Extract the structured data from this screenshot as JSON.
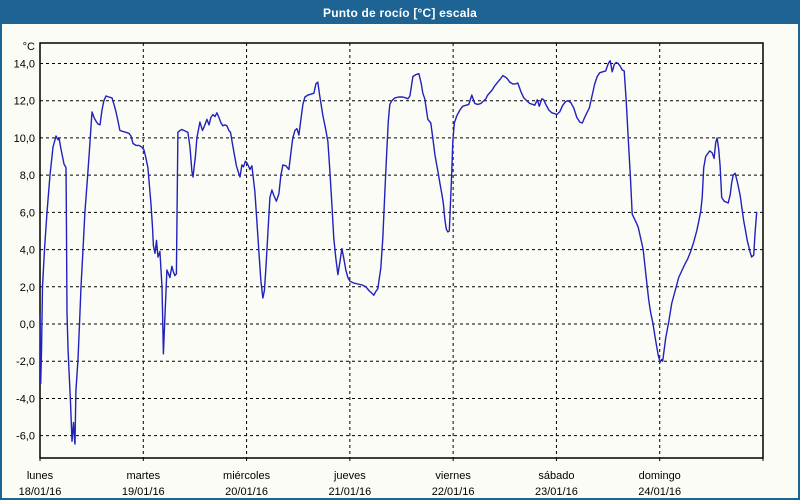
{
  "window": {
    "title": "Punto de rocío [°C] escala",
    "title_bar_color": "#1d6394",
    "background_color": "#fcfcf6",
    "border_color": "#1d6394"
  },
  "chart_data": {
    "type": "line",
    "title": "Punto de rocío [°C] escala",
    "y_unit_label": "°C",
    "xlabel": "",
    "ylabel": "Punto de rocío [°C]",
    "legend": "none",
    "grid": "dashed-black",
    "line_color": "#2121bd",
    "axis_color": "#000000",
    "xlim_days": [
      0,
      7
    ],
    "ylim": [
      -7.2,
      15.1
    ],
    "yticks": [
      {
        "value": 14,
        "label": "14,0"
      },
      {
        "value": 12,
        "label": "12,0"
      },
      {
        "value": 10,
        "label": "10,0"
      },
      {
        "value": 8,
        "label": "8,0"
      },
      {
        "value": 6,
        "label": "6,0"
      },
      {
        "value": 4,
        "label": "4,0"
      },
      {
        "value": 2,
        "label": "2,0"
      },
      {
        "value": 0,
        "label": "0,0"
      },
      {
        "value": -2,
        "label": "-2,0"
      },
      {
        "value": -4,
        "label": "-4,0"
      },
      {
        "value": -6,
        "label": "-6,0"
      }
    ],
    "x_days": [
      {
        "name": "lunes",
        "date": "18/01/16"
      },
      {
        "name": "martes",
        "date": "19/01/16"
      },
      {
        "name": "miércoles",
        "date": "20/01/16"
      },
      {
        "name": "jueves",
        "date": "21/01/16"
      },
      {
        "name": "viernes",
        "date": "22/01/16"
      },
      {
        "name": "sábado",
        "date": "23/01/16"
      },
      {
        "name": "domingo",
        "date": "24/01/16"
      }
    ],
    "points": [
      [
        0.0,
        0.5
      ],
      [
        0.007,
        -3.2
      ],
      [
        0.015,
        -1.5
      ],
      [
        0.024,
        2.0
      ],
      [
        0.044,
        4.0
      ],
      [
        0.068,
        6.0
      ],
      [
        0.097,
        8.0
      ],
      [
        0.126,
        9.5
      ],
      [
        0.155,
        10.1
      ],
      [
        0.174,
        9.9
      ],
      [
        0.184,
        10.0
      ],
      [
        0.203,
        9.4
      ],
      [
        0.218,
        9.0
      ],
      [
        0.232,
        8.6
      ],
      [
        0.252,
        8.4
      ],
      [
        0.255,
        6.5
      ],
      [
        0.258,
        4.0
      ],
      [
        0.261,
        0.6
      ],
      [
        0.271,
        -1.3
      ],
      [
        0.281,
        -2.5
      ],
      [
        0.295,
        -4.2
      ],
      [
        0.31,
        -6.3
      ],
      [
        0.324,
        -5.3
      ],
      [
        0.334,
        -6.2
      ],
      [
        0.339,
        -6.45
      ],
      [
        0.348,
        -3.6
      ],
      [
        0.368,
        -1.9
      ],
      [
        0.382,
        0.0
      ],
      [
        0.397,
        2.0
      ],
      [
        0.416,
        4.0
      ],
      [
        0.435,
        6.0
      ],
      [
        0.455,
        7.5
      ],
      [
        0.474,
        9.0
      ],
      [
        0.489,
        10.2
      ],
      [
        0.503,
        11.4
      ],
      [
        0.523,
        11.1
      ],
      [
        0.542,
        10.9
      ],
      [
        0.561,
        10.75
      ],
      [
        0.581,
        10.7
      ],
      [
        0.6,
        11.5
      ],
      [
        0.619,
        12.0
      ],
      [
        0.639,
        12.25
      ],
      [
        0.668,
        12.2
      ],
      [
        0.697,
        12.15
      ],
      [
        0.716,
        11.8
      ],
      [
        0.736,
        11.4
      ],
      [
        0.755,
        10.9
      ],
      [
        0.774,
        10.4
      ],
      [
        0.803,
        10.35
      ],
      [
        0.832,
        10.3
      ],
      [
        0.861,
        10.25
      ],
      [
        0.881,
        10.1
      ],
      [
        0.9,
        9.7
      ],
      [
        0.929,
        9.6
      ],
      [
        0.958,
        9.6
      ],
      [
        0.987,
        9.5
      ],
      [
        1.007,
        9.35
      ],
      [
        1.026,
        8.9
      ],
      [
        1.045,
        8.4
      ],
      [
        1.074,
        6.5
      ],
      [
        1.089,
        5.2
      ],
      [
        1.098,
        4.2
      ],
      [
        1.113,
        3.8
      ],
      [
        1.128,
        4.5
      ],
      [
        1.142,
        3.6
      ],
      [
        1.156,
        3.8
      ],
      [
        1.161,
        3.9
      ],
      [
        1.181,
        2.0
      ],
      [
        1.195,
        -1.6
      ],
      [
        1.21,
        0.5
      ],
      [
        1.229,
        2.9
      ],
      [
        1.244,
        2.7
      ],
      [
        1.258,
        2.5
      ],
      [
        1.277,
        3.1
      ],
      [
        1.292,
        2.8
      ],
      [
        1.306,
        2.6
      ],
      [
        1.321,
        2.7
      ],
      [
        1.335,
        10.3
      ],
      [
        1.355,
        10.4
      ],
      [
        1.374,
        10.45
      ],
      [
        1.394,
        10.4
      ],
      [
        1.413,
        10.35
      ],
      [
        1.432,
        10.3
      ],
      [
        1.452,
        9.5
      ],
      [
        1.471,
        8.2
      ],
      [
        1.481,
        7.9
      ],
      [
        1.505,
        9.0
      ],
      [
        1.519,
        10.0
      ],
      [
        1.548,
        10.85
      ],
      [
        1.573,
        10.4
      ],
      [
        1.597,
        10.7
      ],
      [
        1.616,
        11.0
      ],
      [
        1.636,
        10.7
      ],
      [
        1.655,
        11.1
      ],
      [
        1.674,
        11.25
      ],
      [
        1.694,
        11.15
      ],
      [
        1.713,
        11.35
      ],
      [
        1.732,
        11.1
      ],
      [
        1.752,
        10.8
      ],
      [
        1.771,
        10.65
      ],
      [
        1.79,
        10.7
      ],
      [
        1.81,
        10.65
      ],
      [
        1.829,
        10.4
      ],
      [
        1.844,
        10.3
      ],
      [
        1.863,
        9.7
      ],
      [
        1.882,
        9.1
      ],
      [
        1.902,
        8.5
      ],
      [
        1.921,
        8.15
      ],
      [
        1.936,
        7.9
      ],
      [
        1.955,
        8.55
      ],
      [
        1.97,
        8.45
      ],
      [
        1.989,
        8.75
      ],
      [
        2.003,
        8.65
      ],
      [
        2.018,
        8.5
      ],
      [
        2.032,
        8.3
      ],
      [
        2.052,
        8.5
      ],
      [
        2.081,
        7.1
      ],
      [
        2.1,
        5.5
      ],
      [
        2.12,
        3.8
      ],
      [
        2.139,
        2.3
      ],
      [
        2.158,
        1.4
      ],
      [
        2.173,
        1.8
      ],
      [
        2.187,
        3.0
      ],
      [
        2.207,
        5.0
      ],
      [
        2.226,
        6.8
      ],
      [
        2.245,
        7.2
      ],
      [
        2.265,
        6.9
      ],
      [
        2.289,
        6.6
      ],
      [
        2.313,
        7.0
      ],
      [
        2.332,
        8.0
      ],
      [
        2.352,
        8.55
      ],
      [
        2.381,
        8.5
      ],
      [
        2.41,
        8.3
      ],
      [
        2.429,
        9.2
      ],
      [
        2.448,
        10.0
      ],
      [
        2.468,
        10.4
      ],
      [
        2.487,
        10.5
      ],
      [
        2.507,
        10.15
      ],
      [
        2.526,
        11.0
      ],
      [
        2.545,
        11.8
      ],
      [
        2.565,
        12.2
      ],
      [
        2.594,
        12.3
      ],
      [
        2.623,
        12.35
      ],
      [
        2.652,
        12.4
      ],
      [
        2.671,
        12.9
      ],
      [
        2.69,
        13.0
      ],
      [
        2.71,
        12.2
      ],
      [
        2.739,
        11.2
      ],
      [
        2.768,
        10.4
      ],
      [
        2.787,
        9.8
      ],
      [
        2.807,
        8.2
      ],
      [
        2.826,
        6.4
      ],
      [
        2.845,
        4.6
      ],
      [
        2.865,
        3.5
      ],
      [
        2.884,
        2.65
      ],
      [
        2.903,
        3.3
      ],
      [
        2.923,
        4.05
      ],
      [
        2.942,
        3.5
      ],
      [
        2.961,
        2.9
      ],
      [
        2.981,
        2.5
      ],
      [
        3.0,
        2.3
      ],
      [
        3.039,
        2.2
      ],
      [
        3.077,
        2.15
      ],
      [
        3.116,
        2.1
      ],
      [
        3.155,
        2.0
      ],
      [
        3.184,
        1.8
      ],
      [
        3.213,
        1.65
      ],
      [
        3.232,
        1.55
      ],
      [
        3.252,
        1.75
      ],
      [
        3.271,
        1.9
      ],
      [
        3.3,
        3.0
      ],
      [
        3.319,
        4.6
      ],
      [
        3.339,
        7.15
      ],
      [
        3.358,
        9.3
      ],
      [
        3.372,
        10.9
      ],
      [
        3.387,
        11.8
      ],
      [
        3.406,
        12.0
      ],
      [
        3.435,
        12.15
      ],
      [
        3.474,
        12.2
      ],
      [
        3.513,
        12.2
      ],
      [
        3.542,
        12.15
      ],
      [
        3.561,
        12.1
      ],
      [
        3.581,
        12.25
      ],
      [
        3.61,
        13.3
      ],
      [
        3.639,
        13.4
      ],
      [
        3.668,
        13.45
      ],
      [
        3.692,
        12.9
      ],
      [
        3.706,
        12.4
      ],
      [
        3.726,
        12.1
      ],
      [
        3.755,
        11.0
      ],
      [
        3.784,
        10.8
      ],
      [
        3.803,
        10.0
      ],
      [
        3.823,
        9.1
      ],
      [
        3.852,
        8.2
      ],
      [
        3.871,
        7.6
      ],
      [
        3.89,
        7.0
      ],
      [
        3.905,
        6.5
      ],
      [
        3.919,
        5.65
      ],
      [
        3.934,
        5.1
      ],
      [
        3.948,
        4.95
      ],
      [
        3.963,
        5.0
      ],
      [
        3.973,
        6.4
      ],
      [
        3.987,
        8.2
      ],
      [
        3.997,
        9.8
      ],
      [
        4.011,
        10.8
      ],
      [
        4.036,
        11.2
      ],
      [
        4.065,
        11.5
      ],
      [
        4.093,
        11.7
      ],
      [
        4.123,
        11.75
      ],
      [
        4.152,
        11.8
      ],
      [
        4.181,
        12.3
      ],
      [
        4.21,
        11.85
      ],
      [
        4.239,
        11.8
      ],
      [
        4.268,
        11.85
      ],
      [
        4.297,
        12.0
      ],
      [
        4.316,
        12.1
      ],
      [
        4.335,
        12.3
      ],
      [
        4.374,
        12.55
      ],
      [
        4.403,
        12.8
      ],
      [
        4.432,
        13.0
      ],
      [
        4.461,
        13.2
      ],
      [
        4.481,
        13.35
      ],
      [
        4.51,
        13.25
      ],
      [
        4.529,
        13.15
      ],
      [
        4.548,
        13.0
      ],
      [
        4.577,
        12.9
      ],
      [
        4.606,
        12.9
      ],
      [
        4.626,
        12.95
      ],
      [
        4.655,
        12.5
      ],
      [
        4.684,
        12.15
      ],
      [
        4.713,
        12.0
      ],
      [
        4.742,
        11.85
      ],
      [
        4.771,
        11.8
      ],
      [
        4.79,
        11.75
      ],
      [
        4.815,
        12.05
      ],
      [
        4.834,
        11.7
      ],
      [
        4.858,
        12.1
      ],
      [
        4.877,
        12.05
      ],
      [
        4.897,
        11.8
      ],
      [
        4.926,
        11.5
      ],
      [
        4.955,
        11.35
      ],
      [
        4.984,
        11.3
      ],
      [
        5.003,
        11.25
      ],
      [
        5.032,
        11.4
      ],
      [
        5.061,
        11.75
      ],
      [
        5.09,
        11.95
      ],
      [
        5.11,
        12.0
      ],
      [
        5.139,
        11.9
      ],
      [
        5.168,
        11.6
      ],
      [
        5.197,
        11.1
      ],
      [
        5.226,
        10.85
      ],
      [
        5.25,
        10.8
      ],
      [
        5.274,
        11.1
      ],
      [
        5.299,
        11.4
      ],
      [
        5.318,
        11.6
      ],
      [
        5.342,
        12.2
      ],
      [
        5.371,
        12.9
      ],
      [
        5.395,
        13.3
      ],
      [
        5.419,
        13.5
      ],
      [
        5.448,
        13.55
      ],
      [
        5.477,
        13.6
      ],
      [
        5.502,
        14.0
      ],
      [
        5.521,
        14.15
      ],
      [
        5.54,
        13.55
      ],
      [
        5.56,
        13.95
      ],
      [
        5.579,
        14.05
      ],
      [
        5.598,
        14.0
      ],
      [
        5.618,
        13.85
      ],
      [
        5.637,
        13.65
      ],
      [
        5.656,
        13.6
      ],
      [
        5.676,
        12.0
      ],
      [
        5.695,
        10.0
      ],
      [
        5.715,
        8.0
      ],
      [
        5.734,
        5.9
      ],
      [
        5.768,
        5.5
      ],
      [
        5.792,
        5.2
      ],
      [
        5.816,
        4.6
      ],
      [
        5.84,
        4.0
      ],
      [
        5.865,
        2.7
      ],
      [
        5.894,
        1.25
      ],
      [
        5.913,
        0.6
      ],
      [
        5.932,
        0.1
      ],
      [
        5.961,
        -0.9
      ],
      [
        5.986,
        -1.7
      ],
      [
        6.005,
        -2.05
      ],
      [
        6.019,
        -1.9
      ],
      [
        6.029,
        -2.0
      ],
      [
        6.058,
        -0.75
      ],
      [
        6.087,
        0.1
      ],
      [
        6.116,
        1.1
      ],
      [
        6.155,
        1.9
      ],
      [
        6.184,
        2.5
      ],
      [
        6.213,
        2.85
      ],
      [
        6.242,
        3.2
      ],
      [
        6.271,
        3.5
      ],
      [
        6.3,
        3.9
      ],
      [
        6.329,
        4.4
      ],
      [
        6.358,
        5.0
      ],
      [
        6.377,
        5.5
      ],
      [
        6.397,
        6.05
      ],
      [
        6.411,
        6.8
      ],
      [
        6.426,
        8.4
      ],
      [
        6.445,
        9.0
      ],
      [
        6.465,
        9.15
      ],
      [
        6.484,
        9.3
      ],
      [
        6.508,
        9.2
      ],
      [
        6.527,
        8.9
      ],
      [
        6.542,
        9.75
      ],
      [
        6.556,
        10.0
      ],
      [
        6.571,
        9.4
      ],
      [
        6.585,
        8.5
      ],
      [
        6.6,
        6.8
      ],
      [
        6.624,
        6.6
      ],
      [
        6.644,
        6.55
      ],
      [
        6.663,
        6.5
      ],
      [
        6.682,
        6.95
      ],
      [
        6.697,
        7.6
      ],
      [
        6.711,
        8.0
      ],
      [
        6.731,
        8.1
      ],
      [
        6.755,
        7.55
      ],
      [
        6.779,
        6.9
      ],
      [
        6.798,
        6.15
      ],
      [
        6.813,
        5.55
      ],
      [
        6.832,
        5.0
      ],
      [
        6.847,
        4.5
      ],
      [
        6.861,
        4.2
      ],
      [
        6.876,
        3.85
      ],
      [
        6.89,
        3.6
      ],
      [
        6.91,
        3.7
      ],
      [
        6.924,
        5.0
      ],
      [
        6.939,
        6.0
      ]
    ]
  }
}
